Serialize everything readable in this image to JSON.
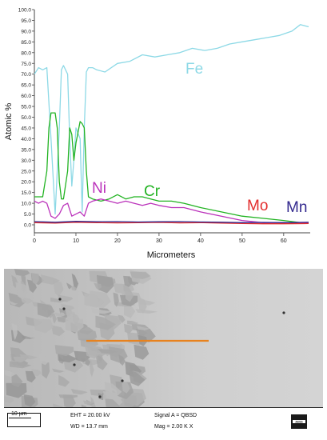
{
  "chart_data": {
    "type": "line",
    "xlabel": "Micrometers",
    "ylabel": "Atomic %",
    "xlim": [
      0,
      66
    ],
    "ylim": [
      0,
      100
    ],
    "x_ticks": [
      "0",
      "10",
      "20",
      "30",
      "40",
      "50",
      "60"
    ],
    "y_ticks": [
      "0.0",
      "5.0",
      "10.0",
      "15.0",
      "20.0",
      "25.0",
      "30.0",
      "35.0",
      "40.0",
      "45.0",
      "50.0",
      "55.0",
      "60.0",
      "65.0",
      "70.0",
      "75.0",
      "80.0",
      "85.0",
      "90.0",
      "95.0",
      "100.0"
    ],
    "grid": false,
    "series": [
      {
        "name": "Fe",
        "color": "#8dd9e6",
        "x": [
          0,
          1,
          2,
          3,
          4,
          5,
          6,
          6.5,
          7,
          8,
          8.5,
          9,
          9.5,
          10,
          11,
          11.5,
          12,
          12.5,
          13,
          14,
          15,
          17,
          20,
          23,
          26,
          29,
          32,
          35,
          38,
          41,
          44,
          47,
          50,
          53,
          56,
          59,
          62,
          64,
          66
        ],
        "y": [
          70,
          73,
          72,
          73,
          40,
          5,
          45,
          72,
          74,
          70,
          40,
          18,
          30,
          45,
          40,
          6,
          45,
          71,
          73,
          73,
          72,
          71,
          75,
          76,
          79,
          78,
          79,
          80,
          82,
          81,
          82,
          84,
          85,
          86,
          87,
          88,
          90,
          93,
          92
        ]
      },
      {
        "name": "Cr",
        "color": "#22b322",
        "x": [
          0,
          2,
          3,
          3.5,
          4,
          5,
          5.5,
          6,
          6.5,
          7,
          8,
          8.5,
          9,
          9.5,
          10,
          11,
          11.5,
          12,
          12.5,
          13,
          14,
          16,
          18,
          20,
          22,
          24,
          26,
          28,
          30,
          33,
          36,
          40,
          45,
          50,
          55,
          60,
          64,
          66
        ],
        "y": [
          13,
          13,
          25,
          45,
          52,
          52,
          45,
          20,
          12,
          12,
          25,
          45,
          42,
          30,
          38,
          48,
          47,
          45,
          25,
          13,
          12,
          11,
          12,
          14,
          12,
          13,
          13,
          12,
          11,
          11,
          10,
          8,
          6,
          4,
          3,
          2,
          1,
          1
        ]
      },
      {
        "name": "Ni",
        "color": "#bb33bb",
        "x": [
          0,
          1,
          2,
          3,
          4,
          5,
          6,
          7,
          8,
          9,
          10,
          11,
          12,
          13,
          14,
          16,
          18,
          20,
          22,
          24,
          26,
          28,
          30,
          33,
          36,
          40,
          45,
          50,
          55,
          60,
          64,
          66
        ],
        "y": [
          11,
          10,
          11,
          10,
          4,
          3,
          5,
          9,
          10,
          4,
          5,
          6,
          4,
          10,
          11,
          12,
          11,
          10,
          11,
          10,
          9,
          10,
          9,
          8,
          8,
          6,
          4,
          2,
          1,
          1,
          1,
          1
        ]
      },
      {
        "name": "Mo",
        "color": "#e32e2e",
        "x": [
          0,
          5,
          10,
          15,
          20,
          25,
          30,
          35,
          40,
          45,
          50,
          55,
          60,
          66
        ],
        "y": [
          1.0,
          0.8,
          1.2,
          1.0,
          0.9,
          1.0,
          1.1,
          0.9,
          1.0,
          0.8,
          0.6,
          0.5,
          0.5,
          0.6
        ]
      },
      {
        "name": "Mn",
        "color": "#33298e",
        "x": [
          0,
          5,
          10,
          15,
          20,
          25,
          30,
          35,
          40,
          45,
          50,
          55,
          60,
          66
        ],
        "y": [
          1.5,
          1.2,
          1.6,
          1.4,
          1.5,
          1.3,
          1.4,
          1.5,
          1.3,
          1.2,
          1.0,
          1.1,
          1.0,
          1.2
        ]
      }
    ],
    "annotations": [
      {
        "text": "Fe",
        "color": "#8dd9e6"
      },
      {
        "text": "Ni",
        "color": "#bb33bb"
      },
      {
        "text": "Cr",
        "color": "#22b322"
      },
      {
        "text": "Mo",
        "color": "#e32e2e"
      },
      {
        "text": "Mn",
        "color": "#33298e"
      }
    ]
  },
  "micrograph": {
    "scalebar_label": "10 µm",
    "eht": "EHT = 20.00 kV",
    "wd": "WD = 13.7 mm",
    "signal": "Signal A = QBSD",
    "mag": "Mag =  2.00 K X",
    "logo_text": "ZEISS",
    "linescan_color": "#e8821e"
  }
}
